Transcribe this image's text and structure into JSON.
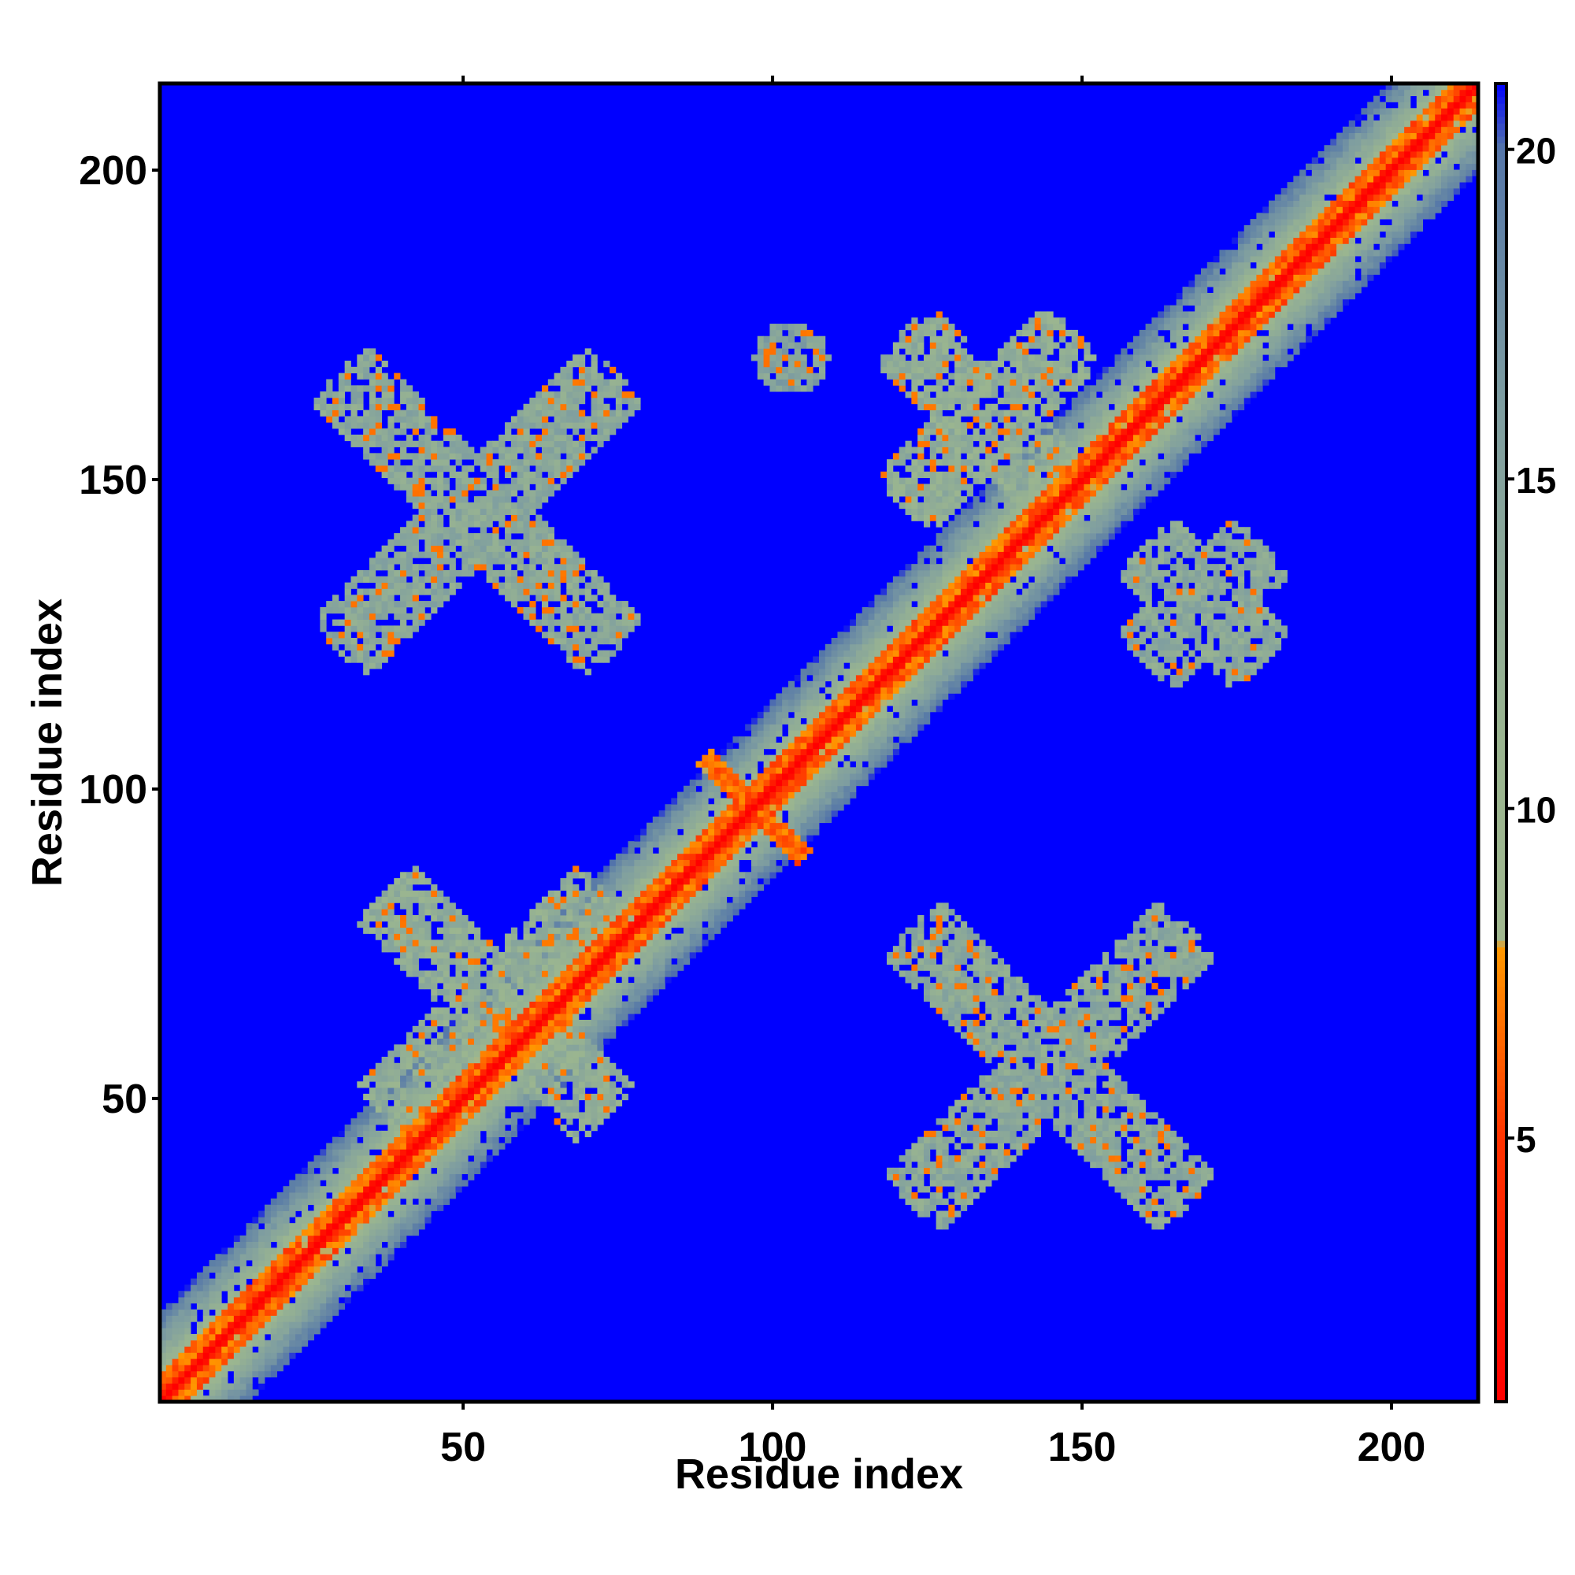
{
  "chart_data": {
    "type": "heatmap",
    "title": "",
    "xlabel": "Residue index",
    "ylabel": "Residue index",
    "xlim": [
      1,
      214
    ],
    "ylim": [
      1,
      214
    ],
    "x_ticks": [
      50,
      100,
      150,
      200
    ],
    "y_ticks": [
      50,
      100,
      150,
      200
    ],
    "colorbar": {
      "range": [
        1,
        21
      ],
      "ticks": [
        5,
        10,
        15,
        20
      ],
      "stops": [
        {
          "value": 1,
          "color": "#ff0000"
        },
        {
          "value": 5,
          "color": "#ff3300"
        },
        {
          "value": 7.9,
          "color": "#ff9900"
        },
        {
          "value": 8,
          "color": "#a0b890"
        },
        {
          "value": 11,
          "color": "#9ab590"
        },
        {
          "value": 16,
          "color": "#7f9ea0"
        },
        {
          "value": 20,
          "color": "#5577a8"
        },
        {
          "value": 21,
          "color": "#0000ff"
        }
      ]
    },
    "background_value": 21,
    "background_color": "#0000ff",
    "diagonal": {
      "value_on_diagonal": 1,
      "band_orange_width": 4,
      "band_green_width": 14
    },
    "contact_regions": [
      {
        "name": "upper-left-x",
        "center": [
          52,
          145
        ],
        "arm_length": 32,
        "mean_value": 13
      },
      {
        "name": "upper-center",
        "center": [
          103,
          170
        ],
        "arm_length": 6,
        "mean_value": 14
      },
      {
        "name": "upper-right-arm",
        "center": [
          135,
          160
        ],
        "arm_length": 20,
        "mean_value": 12
      },
      {
        "name": "lower-left-arm",
        "center": [
          55,
          65
        ],
        "arm_length": 26,
        "mean_value": 12
      },
      {
        "name": "lower-right-x",
        "center": [
          145,
          55
        ],
        "arm_length": 32,
        "mean_value": 13
      },
      {
        "name": "right-mid",
        "center": [
          170,
          130
        ],
        "arm_length": 14,
        "mean_value": 13
      },
      {
        "name": "anti-diagonal-cross",
        "center": [
          97,
          97
        ],
        "arm_length": 12,
        "mean_value": 6
      }
    ]
  }
}
